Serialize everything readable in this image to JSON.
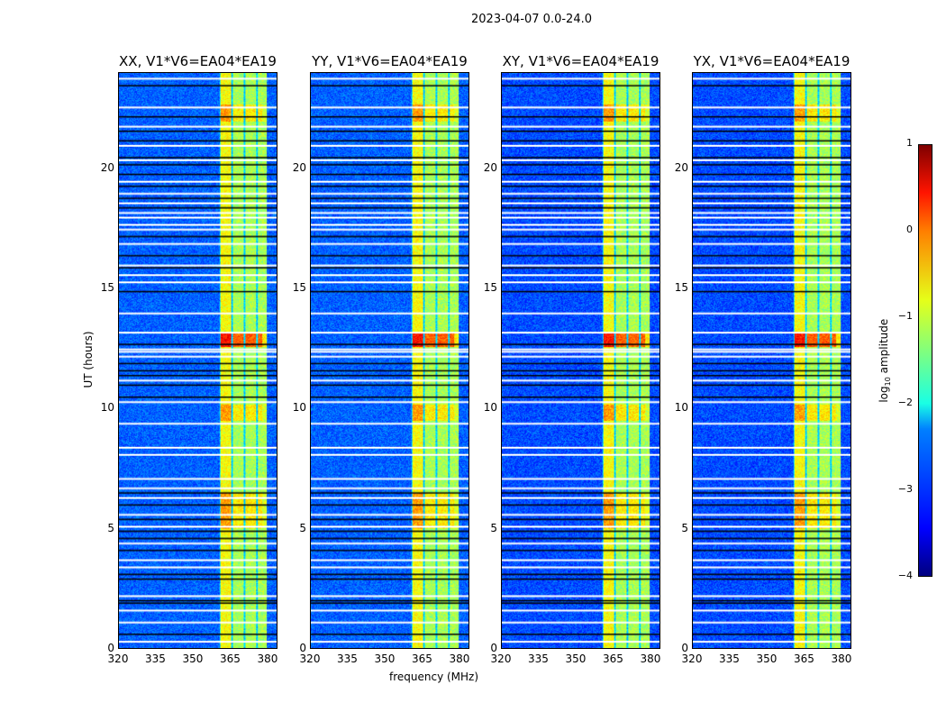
{
  "chart_data": {
    "type": "heatmap",
    "title": "2023-04-07 0.0-24.0",
    "xlabel": "frequency (MHz)",
    "ylabel": "UT (hours)",
    "xlim": [
      320,
      384
    ],
    "ylim": [
      0,
      24
    ],
    "xticks": [
      "320",
      "335",
      "350",
      "365",
      "380"
    ],
    "yticks": [
      "0",
      "5",
      "10",
      "15",
      "20"
    ],
    "panels": [
      {
        "title": "XX, V1*V6=EA04*EA19"
      },
      {
        "title": "YY, V1*V6=EA04*EA19"
      },
      {
        "title": "XY, V1*V6=EA04*EA19"
      },
      {
        "title": "YX, V1*V6=EA04*EA19"
      }
    ],
    "rfi_band_mhz": [
      360.5,
      380
    ],
    "colorbar": {
      "label": "log10 amplitude",
      "label_main": "log",
      "label_sub": "10",
      "label_rest": " amplitude",
      "range": [
        -4,
        1
      ],
      "ticks": [
        "1",
        "0",
        "−1",
        "−2",
        "−3",
        "−4"
      ],
      "colormap": "jet"
    },
    "flagged_times_white": [
      0.3,
      1.1,
      1.6,
      2.2,
      3.4,
      3.7,
      4.4,
      5.1,
      5.6,
      6.3,
      6.7,
      7.1,
      8.1,
      8.4,
      9.4,
      10.3,
      11.2,
      12.2,
      12.4,
      12.5,
      13.2,
      14.0,
      15.3,
      15.6,
      16.0,
      16.9,
      17.5,
      17.7,
      18.0,
      18.2,
      18.6,
      19.0,
      19.5,
      20.4,
      21.0,
      21.8,
      22.6,
      23.8
    ],
    "flagged_times_black": [
      0.6,
      1.9,
      2.0,
      2.9,
      3.1,
      4.1,
      4.6,
      4.9,
      5.4,
      6.0,
      6.5,
      10.5,
      11.0,
      11.4,
      11.6,
      11.9,
      12.7,
      14.9,
      15.9,
      16.4,
      17.2,
      18.4,
      18.8,
      19.3,
      19.8,
      20.2,
      20.5,
      21.2,
      21.6,
      22.2,
      23.5
    ]
  }
}
